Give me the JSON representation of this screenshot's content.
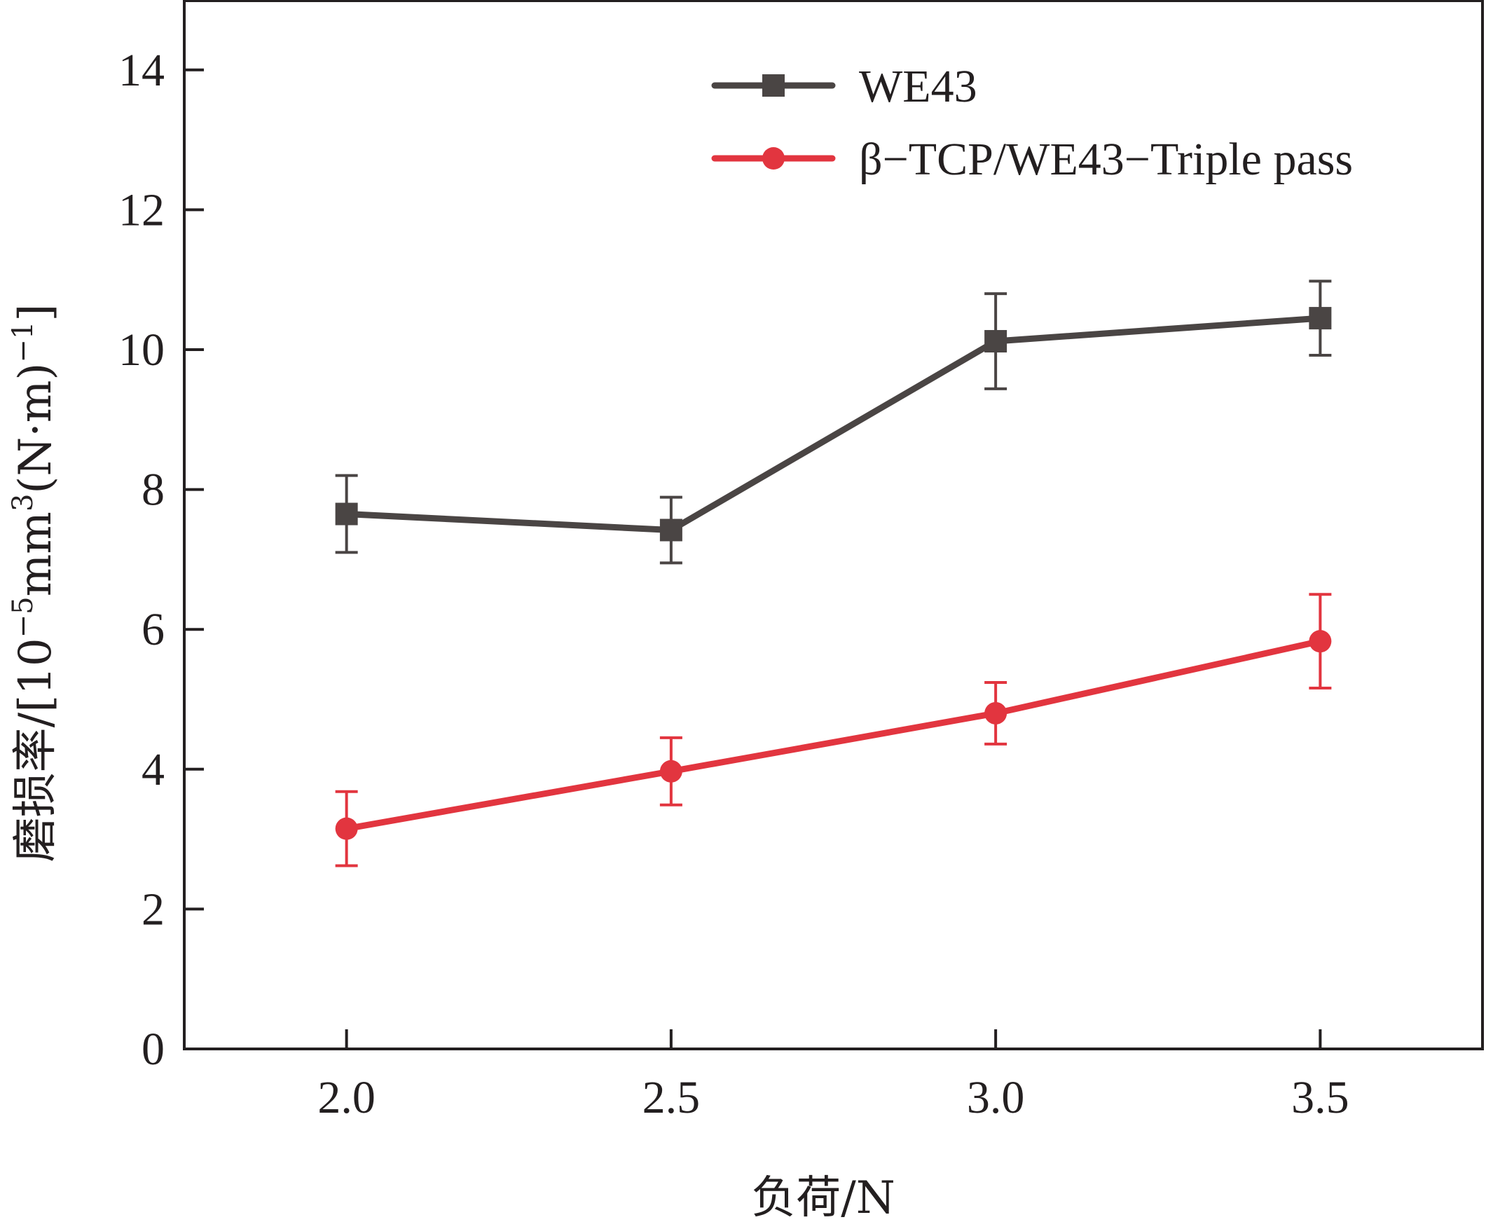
{
  "chart_data": {
    "type": "line",
    "xlabel": "负荷/N",
    "ylabel": "磨损率/[10⁻⁵mm³(N·m)⁻¹]",
    "ylabel_parts": {
      "prefix": "磨损率/[10",
      "exp1": "−5",
      "mid": "mm",
      "exp2": "3",
      "mid2": "(N·m)",
      "exp3": "−1",
      "suffix": "]"
    },
    "x": [
      2.0,
      2.5,
      3.0,
      3.5
    ],
    "x_tick_labels": [
      "2.0",
      "2.5",
      "3.0",
      "3.5"
    ],
    "xlim": [
      1.75,
      3.75
    ],
    "y_ticks": [
      0,
      2,
      4,
      6,
      8,
      10,
      12,
      14
    ],
    "y_tick_labels": [
      "0",
      "2",
      "4",
      "6",
      "8",
      "10",
      "12",
      "14"
    ],
    "ylim": [
      0,
      15
    ],
    "grid": false,
    "legend_position": "top-right",
    "series": [
      {
        "name": "WE43",
        "marker": "square",
        "color": "#4a4544",
        "values": [
          7.65,
          7.42,
          10.12,
          10.45
        ],
        "error": [
          0.55,
          0.47,
          0.68,
          0.53
        ]
      },
      {
        "name": "β−TCP/WE43−Triple pass",
        "marker": "circle",
        "color": "#e2353f",
        "values": [
          3.15,
          3.97,
          4.8,
          5.83
        ],
        "error": [
          0.53,
          0.48,
          0.44,
          0.67
        ]
      }
    ]
  }
}
